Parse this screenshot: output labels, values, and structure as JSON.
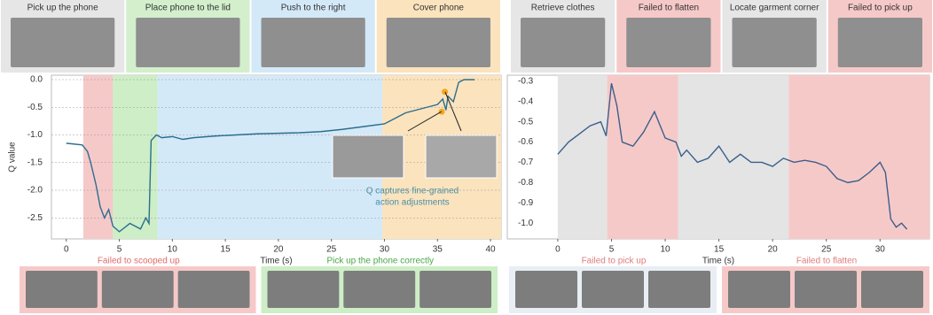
{
  "chart_data": [
    {
      "type": "line",
      "x_label": "Time (s)",
      "y_label": "Q value",
      "xlim": [
        -1.4,
        41
      ],
      "ylim": [
        -2.88,
        0.08
      ],
      "xticks": [
        0,
        5,
        10,
        15,
        20,
        25,
        30,
        35,
        40
      ],
      "yticks": [
        {
          "value": 0,
          "label": "0.0"
        },
        -0.5,
        {
          "value": -1,
          "label": "-1.0"
        },
        -1.5,
        {
          "value": -2,
          "label": "-2.0"
        },
        -2.5
      ],
      "grid": true,
      "regions": [
        {
          "start": 1.6,
          "end": 4.4,
          "color": "#f6c9c9"
        },
        {
          "start": 4.4,
          "end": 8.6,
          "color": "#cdeec6"
        },
        {
          "start": 8.6,
          "end": 29.8,
          "color": "#d4e9f8"
        },
        {
          "start": 29.8,
          "end": 41,
          "color": "#fbe3bd"
        }
      ],
      "x": [
        0,
        1.5,
        2,
        2.3,
        2.8,
        3.2,
        3.6,
        4,
        4.4,
        5,
        6,
        7,
        7.5,
        7.8,
        8,
        8.5,
        9,
        10,
        11,
        12,
        14,
        16,
        18,
        20,
        22,
        24,
        26,
        28,
        30,
        31,
        32,
        33,
        34,
        35,
        35.5,
        35.8,
        36,
        36.5,
        37,
        37.5,
        38.5
      ],
      "series": [
        {
          "color": "#2c6e8e",
          "values": [
            -1.15,
            -1.18,
            -1.3,
            -1.5,
            -1.9,
            -2.3,
            -2.5,
            -2.35,
            -2.65,
            -2.75,
            -2.6,
            -2.7,
            -2.5,
            -2.6,
            -1.1,
            -1.0,
            -1.05,
            -1.03,
            -1.08,
            -1.05,
            -1.02,
            -1.0,
            -0.98,
            -0.97,
            -0.96,
            -0.94,
            -0.9,
            -0.85,
            -0.8,
            -0.7,
            -0.6,
            -0.55,
            -0.5,
            -0.45,
            -0.35,
            -0.55,
            -0.3,
            -0.4,
            -0.05,
            0.0,
            0.0
          ]
        }
      ],
      "markers": {
        "x": [
          35.4,
          35.7
        ],
        "y": [
          -0.58,
          -0.22
        ],
        "color": "#f5a623"
      },
      "annotation": [
        "Q captures fine-grained",
        "action adjustments"
      ],
      "top_panels": [
        {
          "label": "Pick up the phone",
          "color": "#e6e6e6"
        },
        {
          "label": "Place phone to the lid",
          "color": "#d3efcc"
        },
        {
          "label": "Push to the right",
          "color": "#d4e9f8"
        },
        {
          "label": "Cover phone",
          "color": "#fbe3bd"
        }
      ],
      "bottom_panels": [
        {
          "label": "Failed to scooped up",
          "color": "#f6c9c9",
          "text_color": "#e06b6b"
        },
        {
          "label": "Pick up the phone correctly",
          "color": "#cdeec6",
          "text_color": "#4aa84a"
        }
      ]
    },
    {
      "type": "line",
      "x_label": "Time (s)",
      "xlim": [
        -4.7,
        34.6
      ],
      "ylim": [
        -1.078,
        -0.27
      ],
      "xticks": [
        0,
        5,
        10,
        15,
        20,
        25,
        30
      ],
      "yticks": [
        -0.3,
        -0.4,
        -0.5,
        -0.6,
        -0.7,
        -0.8,
        -0.9,
        {
          "value": -1,
          "label": "-1.0"
        }
      ],
      "grid": false,
      "regions": [
        {
          "start": 0,
          "end": 4.6,
          "color": "#e4e4e4"
        },
        {
          "start": 4.6,
          "end": 11.2,
          "color": "#f6c9c9"
        },
        {
          "start": 11.2,
          "end": 21.5,
          "color": "#e4e4e4"
        },
        {
          "start": 21.5,
          "end": 34.6,
          "color": "#f6c9c9"
        }
      ],
      "x": [
        0,
        1,
        2,
        3,
        4,
        4.5,
        5,
        5.5,
        6,
        7,
        8,
        9,
        10,
        11,
        11.5,
        12,
        13,
        14,
        15,
        16,
        17,
        18,
        19,
        20,
        21,
        22,
        23,
        24,
        25,
        26,
        27,
        28,
        29,
        30,
        30.5,
        31,
        31.5,
        32,
        32.5
      ],
      "series": [
        {
          "color": "#3b5f8a",
          "values": [
            -0.66,
            -0.6,
            -0.56,
            -0.52,
            -0.5,
            -0.57,
            -0.31,
            -0.42,
            -0.6,
            -0.62,
            -0.55,
            -0.45,
            -0.58,
            -0.6,
            -0.67,
            -0.64,
            -0.7,
            -0.68,
            -0.62,
            -0.7,
            -0.66,
            -0.7,
            -0.7,
            -0.72,
            -0.68,
            -0.7,
            -0.69,
            -0.7,
            -0.72,
            -0.78,
            -0.8,
            -0.79,
            -0.75,
            -0.7,
            -0.75,
            -0.98,
            -1.02,
            -1.0,
            -1.03
          ]
        }
      ],
      "top_panels": [
        {
          "label": "Retrieve clothes",
          "color": "#e6e6e6"
        },
        {
          "label": "Failed to flatten",
          "color": "#f6c9c9"
        },
        {
          "label": "Locate garment corner",
          "color": "#e6e6e6"
        },
        {
          "label": "Failed to pick up",
          "color": "#f6c9c9"
        }
      ],
      "bottom_panels": [
        {
          "label": "Failed to pick up",
          "color": "#e8eef4",
          "text_color": "#e07c7c"
        },
        {
          "label": "Failed to flatten",
          "color": "#f6c9c9",
          "text_color": "#e07c7c"
        }
      ]
    }
  ]
}
